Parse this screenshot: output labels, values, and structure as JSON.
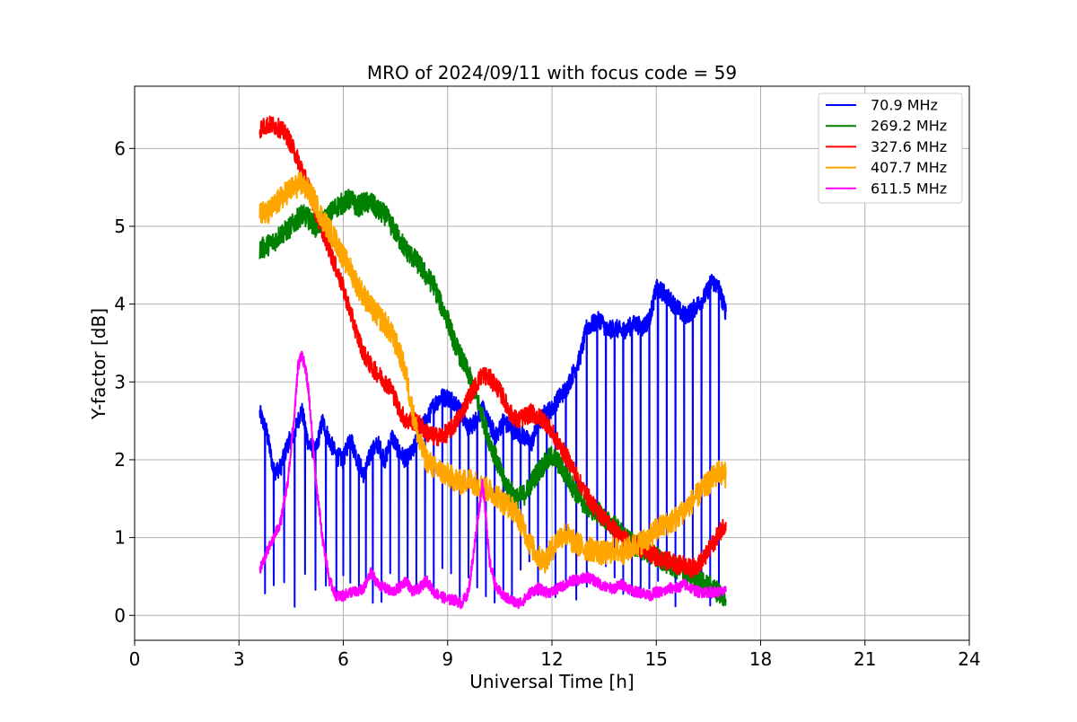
{
  "chart_data": {
    "type": "line",
    "title": "MRO of 2024/09/11 with focus code = 59",
    "xlabel": "Universal Time [h]",
    "ylabel": "Y-factor [dB]",
    "xlim": [
      0,
      24
    ],
    "ylim": [
      -0.32,
      6.8
    ],
    "xticks": [
      0,
      3,
      6,
      9,
      12,
      15,
      18,
      21,
      24
    ],
    "yticks": [
      0,
      1,
      2,
      3,
      4,
      5,
      6
    ],
    "grid": true,
    "legend_position": "top-right",
    "series": [
      {
        "name": " 70.9 MHz",
        "color": "#0000ff",
        "x": [
          3.6,
          3.8,
          4.0,
          4.2,
          4.4,
          4.6,
          4.8,
          5.0,
          5.2,
          5.4,
          5.6,
          5.8,
          6.0,
          6.2,
          6.4,
          6.6,
          6.8,
          7.0,
          7.2,
          7.4,
          7.6,
          7.8,
          8.0,
          8.2,
          8.4,
          8.6,
          8.8,
          9.0,
          9.2,
          9.4,
          9.6,
          9.8,
          10.0,
          10.2,
          10.4,
          10.6,
          10.8,
          11.0,
          11.2,
          11.4,
          11.6,
          11.8,
          12.0,
          12.2,
          12.4,
          12.6,
          12.8,
          13.0,
          13.2,
          13.4,
          13.6,
          13.8,
          14.0,
          14.2,
          14.4,
          14.6,
          14.8,
          15.0,
          15.2,
          15.4,
          15.6,
          15.8,
          16.0,
          16.2,
          16.4,
          16.6,
          16.8,
          17.0
        ],
        "values": [
          2.6,
          2.35,
          1.85,
          1.9,
          2.2,
          2.35,
          2.65,
          2.2,
          2.1,
          2.5,
          2.25,
          2.05,
          2.0,
          2.3,
          2.0,
          1.8,
          2.1,
          2.2,
          2.0,
          2.3,
          2.1,
          2.0,
          2.1,
          2.4,
          2.5,
          2.7,
          2.8,
          2.8,
          2.75,
          2.6,
          2.4,
          2.5,
          2.65,
          2.45,
          2.3,
          2.5,
          2.4,
          2.35,
          2.3,
          2.2,
          2.45,
          2.6,
          2.65,
          2.8,
          2.9,
          3.1,
          3.3,
          3.7,
          3.75,
          3.8,
          3.65,
          3.7,
          3.65,
          3.7,
          3.75,
          3.7,
          3.8,
          4.2,
          4.15,
          4.05,
          3.95,
          3.85,
          3.9,
          4.0,
          4.1,
          4.3,
          4.2,
          3.9
        ],
        "dips": [
          3.75,
          4.0,
          4.3,
          4.6,
          4.9,
          5.2,
          5.5,
          5.8,
          6.0,
          6.2,
          6.45,
          6.65,
          6.85,
          7.1,
          7.35,
          7.6,
          7.85,
          8.1,
          8.35,
          8.6,
          8.85,
          9.1,
          9.35,
          9.6,
          9.85,
          10.1,
          10.35,
          10.6,
          10.85,
          11.1,
          11.35,
          11.6,
          11.85,
          12.1,
          12.4,
          12.7,
          13.0,
          13.3,
          13.55,
          13.8,
          14.05,
          14.3,
          14.55,
          14.8,
          15.05,
          15.3,
          15.55,
          15.8,
          16.05,
          16.3,
          16.55,
          16.8
        ],
        "dip_floor": 0.1
      },
      {
        "name": "269.2 MHz",
        "color": "#008000",
        "x": [
          3.6,
          3.8,
          4.0,
          4.2,
          4.4,
          4.6,
          4.8,
          5.0,
          5.2,
          5.4,
          5.6,
          5.8,
          6.0,
          6.2,
          6.4,
          6.6,
          6.8,
          7.0,
          7.2,
          7.4,
          7.6,
          7.8,
          8.0,
          8.2,
          8.4,
          8.6,
          8.8,
          9.0,
          9.2,
          9.4,
          9.6,
          9.8,
          10.0,
          10.2,
          10.4,
          10.6,
          10.8,
          11.0,
          11.2,
          11.4,
          11.6,
          11.8,
          12.0,
          12.2,
          12.4,
          12.6,
          12.8,
          13.0,
          13.2,
          13.4,
          13.6,
          13.8,
          14.0,
          14.2,
          14.4,
          14.6,
          14.8,
          15.0,
          15.2,
          15.4,
          15.6,
          15.8,
          16.0,
          16.2,
          16.4,
          16.6,
          16.8,
          17.0
        ],
        "values": [
          4.7,
          4.75,
          4.8,
          4.9,
          4.95,
          5.05,
          5.15,
          5.1,
          5.0,
          5.05,
          5.15,
          5.25,
          5.3,
          5.35,
          5.25,
          5.3,
          5.3,
          5.2,
          5.15,
          5.0,
          4.85,
          4.7,
          4.6,
          4.5,
          4.35,
          4.25,
          4.0,
          3.8,
          3.5,
          3.3,
          3.1,
          2.85,
          2.55,
          2.25,
          2.0,
          1.75,
          1.6,
          1.5,
          1.55,
          1.7,
          1.85,
          1.95,
          2.05,
          1.95,
          1.8,
          1.65,
          1.5,
          1.4,
          1.35,
          1.3,
          1.2,
          1.15,
          1.05,
          0.95,
          0.9,
          0.85,
          0.8,
          0.75,
          0.7,
          0.65,
          0.6,
          0.55,
          0.5,
          0.45,
          0.4,
          0.35,
          0.3,
          0.2
        ]
      },
      {
        "name": "327.6 MHz",
        "color": "#ff0000",
        "x": [
          3.6,
          3.8,
          4.0,
          4.2,
          4.4,
          4.6,
          4.8,
          5.0,
          5.2,
          5.4,
          5.6,
          5.8,
          6.0,
          6.2,
          6.4,
          6.6,
          6.8,
          7.0,
          7.2,
          7.4,
          7.6,
          7.8,
          8.0,
          8.2,
          8.4,
          8.6,
          8.8,
          9.0,
          9.2,
          9.4,
          9.6,
          9.8,
          10.0,
          10.2,
          10.4,
          10.6,
          10.8,
          11.0,
          11.2,
          11.4,
          11.6,
          11.8,
          12.0,
          12.2,
          12.4,
          12.6,
          12.8,
          13.0,
          13.2,
          13.4,
          13.6,
          13.8,
          14.0,
          14.2,
          14.4,
          14.6,
          14.8,
          15.0,
          15.2,
          15.4,
          15.6,
          15.8,
          16.0,
          16.2,
          16.4,
          16.6,
          16.8,
          17.0
        ],
        "values": [
          6.25,
          6.3,
          6.3,
          6.25,
          6.15,
          5.95,
          5.75,
          5.5,
          5.2,
          4.95,
          4.7,
          4.45,
          4.2,
          3.9,
          3.6,
          3.35,
          3.2,
          3.1,
          3.0,
          2.9,
          2.65,
          2.5,
          2.5,
          2.45,
          2.35,
          2.3,
          2.3,
          2.35,
          2.45,
          2.6,
          2.8,
          2.95,
          3.1,
          3.05,
          2.95,
          2.8,
          2.6,
          2.5,
          2.55,
          2.6,
          2.55,
          2.5,
          2.35,
          2.2,
          2.05,
          1.9,
          1.7,
          1.55,
          1.4,
          1.3,
          1.2,
          1.1,
          1.0,
          0.95,
          0.9,
          0.85,
          0.8,
          0.75,
          0.7,
          0.7,
          0.65,
          0.65,
          0.6,
          0.65,
          0.75,
          0.9,
          1.05,
          1.2
        ]
      },
      {
        "name": "407.7 MHz",
        "color": "#ffa500",
        "x": [
          3.6,
          3.8,
          4.0,
          4.2,
          4.4,
          4.6,
          4.8,
          5.0,
          5.2,
          5.4,
          5.6,
          5.8,
          6.0,
          6.2,
          6.4,
          6.6,
          6.8,
          7.0,
          7.2,
          7.4,
          7.6,
          7.8,
          8.0,
          8.2,
          8.4,
          8.6,
          8.8,
          9.0,
          9.2,
          9.4,
          9.6,
          9.8,
          10.0,
          10.2,
          10.4,
          10.6,
          10.8,
          11.0,
          11.2,
          11.4,
          11.6,
          11.8,
          12.0,
          12.2,
          12.4,
          12.6,
          12.8,
          13.0,
          13.2,
          13.4,
          13.6,
          13.8,
          14.0,
          14.2,
          14.4,
          14.6,
          14.8,
          15.0,
          15.2,
          15.4,
          15.6,
          15.8,
          16.0,
          16.2,
          16.4,
          16.6,
          16.8,
          17.0
        ],
        "values": [
          5.2,
          5.15,
          5.25,
          5.35,
          5.45,
          5.5,
          5.55,
          5.45,
          5.3,
          5.1,
          4.95,
          4.8,
          4.6,
          4.45,
          4.25,
          4.1,
          3.95,
          3.85,
          3.75,
          3.6,
          3.4,
          3.1,
          2.6,
          2.2,
          2.0,
          1.9,
          1.85,
          1.8,
          1.75,
          1.7,
          1.75,
          1.7,
          1.65,
          1.6,
          1.55,
          1.45,
          1.4,
          1.3,
          1.1,
          0.9,
          0.75,
          0.7,
          0.85,
          1.0,
          1.05,
          0.95,
          0.9,
          0.85,
          0.85,
          0.8,
          0.8,
          0.85,
          0.8,
          0.85,
          0.9,
          0.95,
          1.0,
          1.1,
          1.15,
          1.2,
          1.25,
          1.35,
          1.45,
          1.55,
          1.65,
          1.75,
          1.85,
          1.8
        ]
      },
      {
        "name": "611.5 MHz",
        "color": "#ff00ff",
        "x": [
          3.6,
          3.8,
          4.0,
          4.2,
          4.4,
          4.6,
          4.7,
          4.8,
          4.9,
          5.0,
          5.2,
          5.4,
          5.6,
          5.8,
          6.0,
          6.2,
          6.4,
          6.6,
          6.8,
          7.0,
          7.2,
          7.4,
          7.6,
          7.8,
          8.0,
          8.2,
          8.4,
          8.6,
          8.8,
          9.0,
          9.2,
          9.4,
          9.6,
          9.8,
          10.0,
          10.1,
          10.2,
          10.4,
          10.6,
          10.8,
          11.0,
          11.2,
          11.4,
          11.6,
          11.8,
          12.0,
          12.2,
          12.4,
          12.6,
          12.8,
          13.0,
          13.2,
          13.4,
          13.6,
          13.8,
          14.0,
          14.2,
          14.4,
          14.6,
          14.8,
          15.0,
          15.2,
          15.4,
          15.6,
          15.8,
          16.0,
          16.2,
          16.4,
          16.6,
          16.8,
          17.0
        ],
        "values": [
          0.6,
          0.8,
          1.0,
          1.2,
          1.7,
          2.6,
          3.2,
          3.35,
          3.2,
          2.9,
          1.8,
          1.0,
          0.45,
          0.25,
          0.25,
          0.3,
          0.3,
          0.35,
          0.55,
          0.4,
          0.35,
          0.3,
          0.35,
          0.45,
          0.3,
          0.35,
          0.45,
          0.3,
          0.25,
          0.2,
          0.2,
          0.15,
          0.3,
          1.0,
          1.7,
          1.3,
          0.7,
          0.35,
          0.25,
          0.2,
          0.15,
          0.2,
          0.3,
          0.35,
          0.3,
          0.3,
          0.35,
          0.4,
          0.45,
          0.45,
          0.5,
          0.45,
          0.4,
          0.35,
          0.35,
          0.4,
          0.35,
          0.3,
          0.3,
          0.25,
          0.3,
          0.3,
          0.35,
          0.35,
          0.4,
          0.35,
          0.3,
          0.3,
          0.3,
          0.3,
          0.3
        ]
      }
    ]
  }
}
